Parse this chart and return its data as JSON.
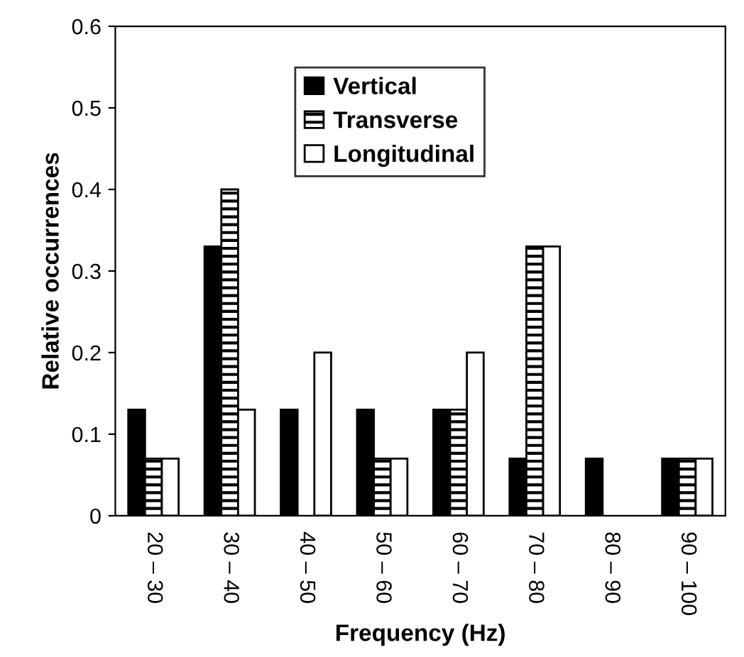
{
  "chart_data": {
    "type": "bar",
    "xlabel": "Frequency (Hz)",
    "ylabel": "Relative occurrences",
    "categories": [
      "20 – 30",
      "30 – 40",
      "40 – 50",
      "50 – 60",
      "60 – 70",
      "70 – 80",
      "80 – 90",
      "90 – 100"
    ],
    "series": [
      {
        "name": "Vertical",
        "color": "#000000",
        "values": [
          0.13,
          0.33,
          0.13,
          0.13,
          0.13,
          0.07,
          0.07,
          0.07
        ]
      },
      {
        "name": "Transverse",
        "color": "#000000",
        "values": [
          0.07,
          0.4,
          0,
          0.07,
          0.13,
          0.33,
          0,
          0.07
        ]
      },
      {
        "name": "Longitudinal",
        "color": "#ffffff",
        "values": [
          0.07,
          0.13,
          0.2,
          0.07,
          0.2,
          0.33,
          0,
          0.07
        ]
      }
    ],
    "ylim": [
      0,
      0.6
    ],
    "yticks": [
      0,
      0.1,
      0.2,
      0.3,
      0.4,
      0.5,
      0.6
    ],
    "grid": false,
    "legend": "top"
  }
}
